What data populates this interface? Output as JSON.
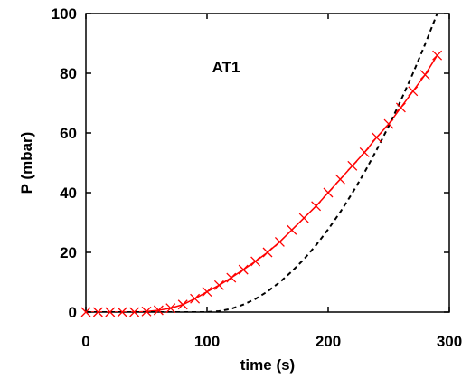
{
  "chart_data": {
    "type": "scatter",
    "annotation": "AT1",
    "x_label": "time (s)",
    "y_label": "P (mbar)",
    "xlim": [
      0,
      300
    ],
    "xticks": [
      0,
      100,
      200,
      300
    ],
    "ylim": [
      0,
      100
    ],
    "yticks": [
      0,
      20,
      40,
      60,
      80,
      100
    ],
    "series": [
      {
        "color": "#ff0000",
        "marker": "x",
        "line": "solid",
        "x": [
          0,
          10,
          20,
          30,
          40,
          50,
          60,
          70,
          80,
          90,
          100,
          110,
          120,
          130,
          140,
          150,
          160,
          170,
          180,
          190,
          200,
          210,
          220,
          230,
          240,
          250,
          260,
          270,
          280,
          290
        ],
        "values": [
          0,
          0,
          0,
          0,
          0,
          0.2,
          0.6,
          1.3,
          2.5,
          4.5,
          6.8,
          9,
          11.5,
          14.2,
          17,
          20,
          23.5,
          27.5,
          31.5,
          35.5,
          40,
          44.5,
          49,
          53.5,
          58.5,
          63,
          68.5,
          74,
          79.5,
          86
        ]
      },
      {
        "color": "#000000",
        "marker": "none",
        "line": "dashed",
        "x": [
          0,
          100,
          110,
          120,
          130,
          140,
          150,
          160,
          170,
          180,
          190,
          200,
          210,
          220,
          230,
          240,
          250,
          260,
          270,
          280,
          290
        ],
        "values": [
          0,
          0,
          0.3,
          1.1,
          2.5,
          4.4,
          6.9,
          10,
          13.6,
          17.7,
          22.4,
          27.7,
          33.5,
          39.9,
          46.8,
          54.3,
          62.3,
          70.9,
          80,
          89.7,
          100
        ]
      }
    ]
  }
}
